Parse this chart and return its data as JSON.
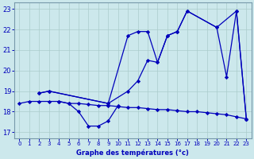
{
  "background_color": "#cce8ec",
  "grid_color": "#aacccc",
  "line_color": "#0000bb",
  "title": "Graphe des températures (°c)",
  "xlim": [
    -0.5,
    23.5
  ],
  "ylim": [
    16.7,
    23.3
  ],
  "yticks": [
    17,
    18,
    19,
    20,
    21,
    22,
    23
  ],
  "xticks": [
    0,
    1,
    2,
    3,
    4,
    5,
    6,
    7,
    8,
    9,
    10,
    11,
    12,
    13,
    14,
    15,
    16,
    17,
    18,
    19,
    20,
    21,
    22,
    23
  ],
  "curve1_x": [
    0,
    1,
    2,
    3,
    4,
    5,
    6,
    7,
    8,
    9,
    10,
    11,
    12,
    13,
    14,
    15,
    16,
    17,
    18,
    19,
    20,
    21,
    22,
    23
  ],
  "curve1_y": [
    18.4,
    18.5,
    18.5,
    18.5,
    18.5,
    18.4,
    18.4,
    18.35,
    18.3,
    18.3,
    18.25,
    18.2,
    18.2,
    18.15,
    18.1,
    18.1,
    18.05,
    18.0,
    18.0,
    17.95,
    17.9,
    17.85,
    17.75,
    17.65
  ],
  "curve2_x": [
    2,
    3,
    9,
    11,
    12,
    13,
    14,
    15,
    16,
    17,
    20,
    22,
    23
  ],
  "curve2_y": [
    18.9,
    19.0,
    18.4,
    21.7,
    21.9,
    21.9,
    20.4,
    21.7,
    21.9,
    22.9,
    22.1,
    22.9,
    17.65
  ],
  "curve3_x": [
    2,
    3,
    9,
    11,
    12,
    13,
    14,
    15,
    16,
    17,
    20,
    21,
    22,
    23
  ],
  "curve3_y": [
    18.9,
    19.0,
    18.4,
    19.0,
    19.5,
    20.5,
    20.4,
    21.7,
    21.9,
    22.9,
    22.1,
    19.7,
    22.9,
    17.65
  ],
  "curve4_x": [
    4,
    5,
    6,
    7,
    8,
    9,
    10
  ],
  "curve4_y": [
    18.5,
    18.4,
    18.0,
    17.3,
    17.3,
    17.55,
    18.3
  ],
  "marker": "D",
  "markersize": 2.2,
  "linewidth": 0.9
}
